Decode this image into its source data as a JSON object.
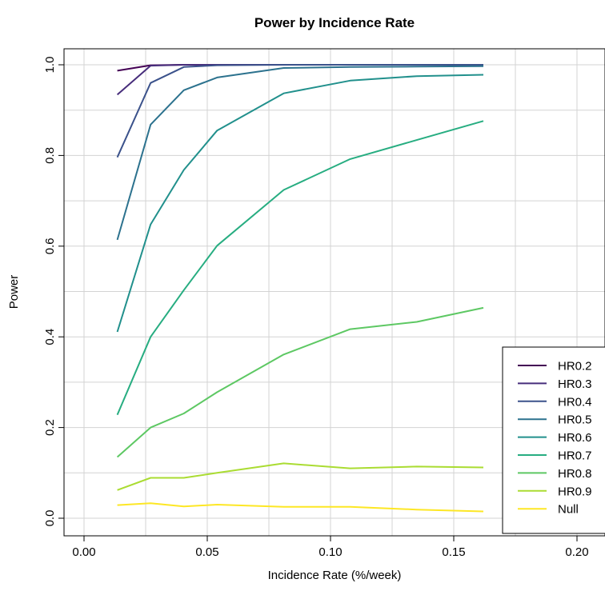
{
  "chart_data": {
    "type": "line",
    "title": "Power by Incidence Rate",
    "xlabel": "Incidence Rate (%/week)",
    "ylabel": "Power",
    "xlim": [
      -0.008,
      0.21
    ],
    "ylim": [
      -0.04,
      1.04
    ],
    "xticks": [
      0.0,
      0.05,
      0.1,
      0.15,
      0.2
    ],
    "xtick_labels": [
      "0.00",
      "0.05",
      "0.10",
      "0.15",
      "0.20"
    ],
    "yticks": [
      0.0,
      0.2,
      0.4,
      0.6,
      0.8,
      1.0
    ],
    "ytick_labels": [
      "0.0",
      "0.2",
      "0.4",
      "0.6",
      "0.8",
      "1.0"
    ],
    "grid": true,
    "legend_position": "bottom-right",
    "x": [
      0.0135,
      0.027,
      0.0405,
      0.054,
      0.081,
      0.108,
      0.135,
      0.162
    ],
    "series": [
      {
        "name": "HR0.2",
        "color": "#440154",
        "values": [
          0.987,
          0.999,
          1.0,
          1.0,
          1.0,
          1.0,
          1.0,
          1.0
        ]
      },
      {
        "name": "HR0.3",
        "color": "#472D7B",
        "values": [
          0.934,
          0.998,
          1.0,
          1.0,
          1.0,
          1.0,
          1.0,
          1.0
        ]
      },
      {
        "name": "HR0.4",
        "color": "#3B528B",
        "values": [
          0.796,
          0.96,
          0.995,
          0.999,
          1.0,
          1.0,
          1.0,
          1.0
        ]
      },
      {
        "name": "HR0.5",
        "color": "#2C728E",
        "values": [
          0.614,
          0.868,
          0.944,
          0.972,
          0.993,
          0.995,
          0.996,
          0.997
        ]
      },
      {
        "name": "HR0.6",
        "color": "#21908C",
        "values": [
          0.411,
          0.648,
          0.768,
          0.855,
          0.937,
          0.965,
          0.975,
          0.978
        ]
      },
      {
        "name": "HR0.7",
        "color": "#27AD81",
        "values": [
          0.228,
          0.4,
          0.503,
          0.601,
          0.724,
          0.792,
          0.834,
          0.876
        ]
      },
      {
        "name": "HR0.8",
        "color": "#5DC863",
        "values": [
          0.135,
          0.2,
          0.231,
          0.278,
          0.361,
          0.417,
          0.433,
          0.464
        ]
      },
      {
        "name": "HR0.9",
        "color": "#AADC32",
        "values": [
          0.062,
          0.089,
          0.089,
          0.1,
          0.121,
          0.11,
          0.114,
          0.112
        ]
      },
      {
        "name": "Null",
        "color": "#FDE725",
        "values": [
          0.029,
          0.033,
          0.026,
          0.03,
          0.025,
          0.025,
          0.019,
          0.015
        ]
      }
    ]
  }
}
